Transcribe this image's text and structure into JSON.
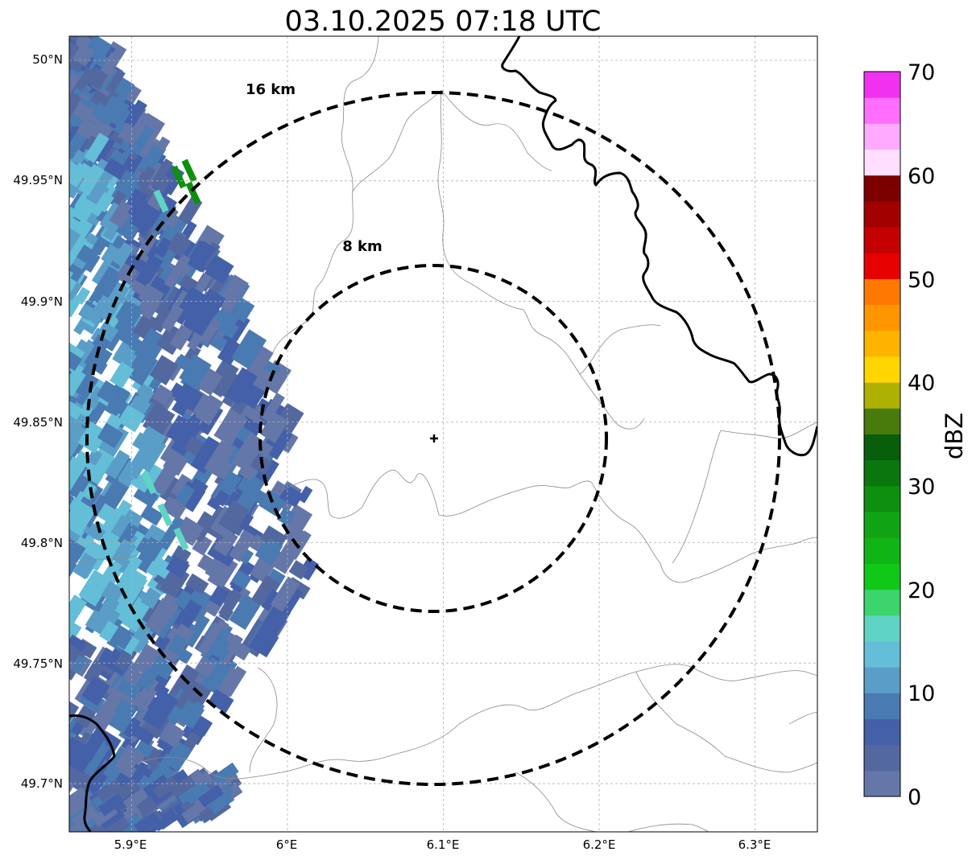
{
  "title": "03.10.2025 07:18 UTC",
  "map": {
    "lat_ticks": [
      "50°N",
      "49.95°N",
      "49.9°N",
      "49.85°N",
      "49.8°N",
      "49.75°N",
      "49.7°N"
    ],
    "lon_ticks": [
      "5.9°E",
      "6°E",
      "6.1°E",
      "6.2°E",
      "6.3°E"
    ],
    "extent": {
      "lon_min": 5.86,
      "lon_max": 6.34,
      "lat_min": 49.68,
      "lat_max": 50.01
    },
    "radar_center": {
      "lon": 6.095,
      "lat": 49.842
    },
    "rings": [
      {
        "label": "8 km",
        "radius_km": 8
      },
      {
        "label": "16 km",
        "radius_km": 16
      }
    ]
  },
  "colorbar": {
    "label": "dBZ",
    "ticks": [
      "0",
      "10",
      "20",
      "30",
      "40",
      "50",
      "60",
      "70"
    ],
    "min": 0,
    "max": 70,
    "step": 2.5,
    "colors": [
      "#6477a8",
      "#5468a0",
      "#4460a8",
      "#4a7ab2",
      "#5a9ec8",
      "#64bed8",
      "#60d4c4",
      "#3cd46c",
      "#10c818",
      "#10b414",
      "#10a414",
      "#0e900e",
      "#0a760e",
      "#085e0a",
      "#487a0c",
      "#aeb004",
      "#ffd600",
      "#ffb400",
      "#ff9600",
      "#ff7800",
      "#e60000",
      "#c40000",
      "#a20000",
      "#7c0000",
      "#ffdeff",
      "#ffaaff",
      "#ff6eff",
      "#f032f0"
    ]
  }
}
